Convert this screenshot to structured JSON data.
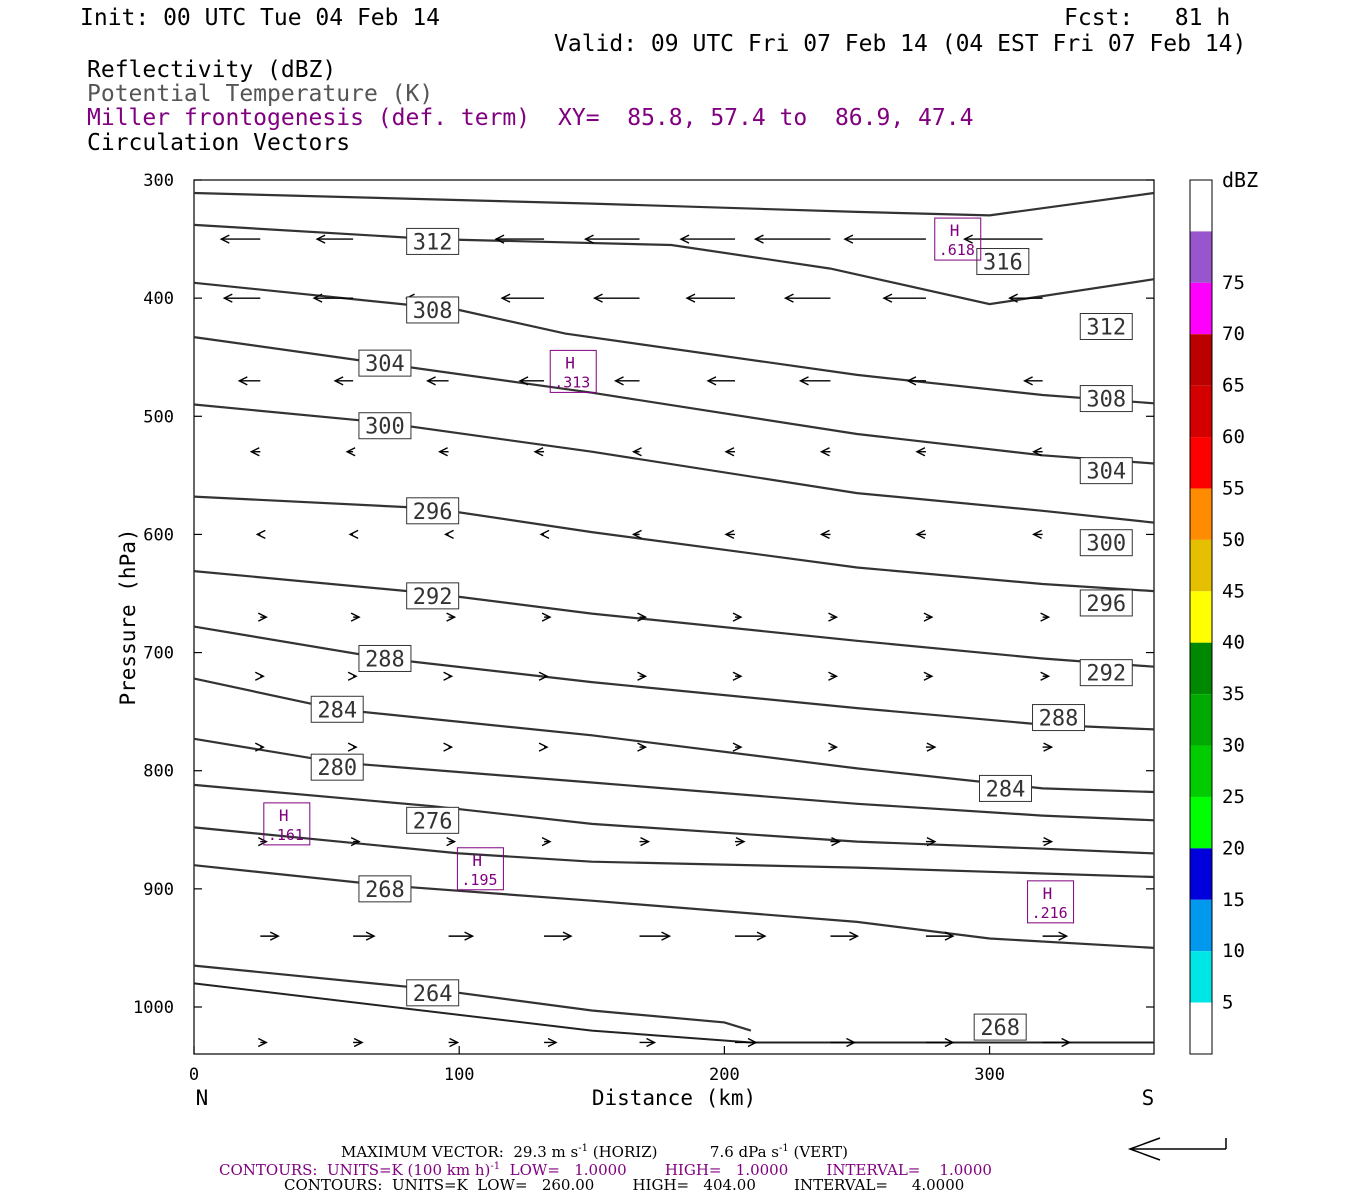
{
  "header": {
    "init": "Init: 00 UTC Tue 04 Feb 14",
    "fcst": "Fcst:   81 h",
    "valid": "Valid: 09 UTC Fri 07 Feb 14 (04 EST Fri 07 Feb 14)",
    "field1": "Reflectivity (dBZ)",
    "field2": "Potential Temperature (K)",
    "field3": "Miller frontogenesis (def. term)",
    "xy": "XY=  85.8, 57.4 to  86.9, 47.4",
    "field4": "Circulation Vectors"
  },
  "colors": {
    "isentrope": "#333333",
    "frontogenesis": "#800080",
    "vector": "#000000"
  },
  "chart_data": {
    "type": "cross-section",
    "xlabel": "Distance (km)",
    "ylabel": "Pressure (hPa)",
    "xlim": [
      0,
      362
    ],
    "ylim": [
      300,
      1040
    ],
    "x_ticks": [
      0,
      100,
      200,
      300
    ],
    "y_ticks": [
      300,
      400,
      500,
      600,
      700,
      800,
      900,
      1000
    ],
    "left_end": "N",
    "right_end": "S",
    "colorbar": {
      "unit": "dBZ",
      "levels": [
        5,
        10,
        15,
        20,
        25,
        30,
        35,
        40,
        45,
        50,
        55,
        60,
        65,
        70,
        75
      ],
      "colors": [
        "#ffffff",
        "#00e5e5",
        "#0099ee",
        "#0000dd",
        "#00ff00",
        "#00cc00",
        "#00aa00",
        "#008800",
        "#ffff00",
        "#e5c000",
        "#ff8c00",
        "#ff0000",
        "#d40000",
        "#bb0000",
        "#ff00ff",
        "#9955cc",
        "#ffffff"
      ]
    },
    "isentropes": [
      {
        "theta": "316",
        "points": [
          [
            0,
            311
          ],
          [
            150,
            320
          ],
          [
            250,
            327
          ],
          [
            300,
            330
          ],
          [
            362,
            311
          ]
        ],
        "labels": [
          [
            305,
            369
          ]
        ]
      },
      {
        "theta": "312",
        "points": [
          [
            0,
            338
          ],
          [
            90,
            350
          ],
          [
            180,
            355
          ],
          [
            240,
            375
          ],
          [
            300,
            405
          ],
          [
            362,
            384
          ]
        ],
        "labels": [
          [
            90,
            352
          ],
          [
            344,
            424
          ]
        ]
      },
      {
        "theta": "308",
        "points": [
          [
            0,
            387
          ],
          [
            100,
            410
          ],
          [
            140,
            430
          ],
          [
            250,
            465
          ],
          [
            320,
            482
          ],
          [
            362,
            489
          ]
        ],
        "labels": [
          [
            90,
            410
          ],
          [
            344,
            485
          ]
        ]
      },
      {
        "theta": "304",
        "points": [
          [
            0,
            433
          ],
          [
            70,
            455
          ],
          [
            150,
            480
          ],
          [
            250,
            515
          ],
          [
            320,
            533
          ],
          [
            362,
            540
          ]
        ],
        "labels": [
          [
            72,
            455
          ],
          [
            344,
            546
          ]
        ]
      },
      {
        "theta": "300",
        "points": [
          [
            0,
            490
          ],
          [
            70,
            505
          ],
          [
            150,
            530
          ],
          [
            250,
            565
          ],
          [
            320,
            580
          ],
          [
            362,
            590
          ]
        ],
        "labels": [
          [
            72,
            508
          ],
          [
            344,
            607
          ]
        ]
      },
      {
        "theta": "296",
        "points": [
          [
            0,
            568
          ],
          [
            90,
            578
          ],
          [
            150,
            598
          ],
          [
            250,
            628
          ],
          [
            320,
            642
          ],
          [
            362,
            648
          ]
        ],
        "labels": [
          [
            90,
            580
          ],
          [
            344,
            658
          ]
        ]
      },
      {
        "theta": "292",
        "points": [
          [
            0,
            631
          ],
          [
            90,
            650
          ],
          [
            150,
            667
          ],
          [
            250,
            690
          ],
          [
            320,
            705
          ],
          [
            362,
            712
          ]
        ],
        "labels": [
          [
            90,
            652
          ],
          [
            344,
            717
          ]
        ]
      },
      {
        "theta": "288",
        "points": [
          [
            0,
            678
          ],
          [
            72,
            705
          ],
          [
            150,
            725
          ],
          [
            250,
            747
          ],
          [
            320,
            761
          ],
          [
            362,
            765
          ]
        ],
        "labels": [
          [
            72,
            705
          ],
          [
            326,
            755
          ]
        ]
      },
      {
        "theta": "284",
        "points": [
          [
            0,
            722
          ],
          [
            54,
            748
          ],
          [
            150,
            770
          ],
          [
            250,
            798
          ],
          [
            320,
            815
          ],
          [
            362,
            818
          ]
        ],
        "labels": [
          [
            54,
            748
          ],
          [
            306,
            815
          ]
        ]
      },
      {
        "theta": "280",
        "points": [
          [
            0,
            773
          ],
          [
            54,
            793
          ],
          [
            150,
            810
          ],
          [
            250,
            828
          ],
          [
            320,
            838
          ],
          [
            362,
            842
          ]
        ],
        "labels": [
          [
            54,
            797
          ]
        ]
      },
      {
        "theta": "276",
        "points": [
          [
            0,
            812
          ],
          [
            90,
            830
          ],
          [
            150,
            845
          ],
          [
            250,
            860
          ],
          [
            320,
            866
          ],
          [
            362,
            870
          ]
        ],
        "labels": [
          [
            90,
            842
          ]
        ]
      },
      {
        "theta": "272",
        "points": [
          [
            0,
            848
          ],
          [
            100,
            870
          ],
          [
            150,
            877
          ],
          [
            250,
            882
          ],
          [
            320,
            887
          ],
          [
            362,
            890
          ]
        ],
        "labels": []
      },
      {
        "theta": "268",
        "points": [
          [
            0,
            880
          ],
          [
            72,
            897
          ],
          [
            150,
            910
          ],
          [
            250,
            928
          ],
          [
            300,
            942
          ],
          [
            362,
            950
          ]
        ],
        "labels": [
          [
            72,
            900
          ],
          [
            304,
            1017
          ]
        ]
      },
      {
        "theta": "264",
        "points": [
          [
            0,
            965
          ],
          [
            90,
            985
          ],
          [
            150,
            1003
          ],
          [
            200,
            1013
          ],
          [
            210,
            1020
          ]
        ],
        "labels": [
          [
            90,
            988
          ]
        ]
      }
    ],
    "frontogenesis_maxima": [
      {
        "label": "H",
        "value": ".618",
        "x": 288,
        "y": 350
      },
      {
        "label": "H",
        "value": ".313",
        "x": 143,
        "y": 462
      },
      {
        "label": "H",
        "value": ".161",
        "x": 35,
        "y": 845
      },
      {
        "label": "H",
        "value": ".195",
        "x": 108,
        "y": 883
      },
      {
        "label": "H",
        "value": ".216",
        "x": 323,
        "y": 911
      }
    ],
    "vectors_per_row": [
      [
        -13,
        -12,
        -13,
        -16,
        -18,
        -18,
        -25,
        -27,
        -26
      ],
      [
        -12,
        -13,
        -14,
        -14,
        -15,
        -16,
        -15,
        -14,
        -11
      ],
      [
        -7,
        -6,
        -7,
        -8,
        -8,
        -9,
        -10,
        -6,
        -6
      ],
      [
        -3,
        -2,
        -3,
        -3,
        -2,
        -3,
        -3,
        -3,
        -3
      ],
      [
        -1,
        -1,
        -1,
        -1,
        -2,
        -3,
        -3,
        -3,
        -3
      ],
      [
        2,
        2,
        2,
        2,
        2,
        2,
        2,
        2,
        2
      ],
      [
        1,
        1,
        1,
        1,
        2,
        2,
        2,
        2,
        2
      ],
      [
        1,
        1,
        1,
        1,
        2,
        2,
        2,
        3,
        3
      ],
      [
        2,
        2,
        2,
        2,
        3,
        3,
        3,
        3,
        3
      ],
      [
        6,
        7,
        8,
        9,
        10,
        10,
        9,
        9,
        8
      ],
      [
        2,
        3,
        3,
        4,
        5,
        7,
        8,
        9,
        9
      ]
    ],
    "vector_rows_hpa": [
      350,
      400,
      470,
      530,
      600,
      670,
      720,
      780,
      860,
      940,
      1030
    ]
  },
  "footer": {
    "max_vector_a": "MAXIMUM VECTOR:  29.3 m s",
    "max_vector_b": " (HORIZ)           7.6 dPa s",
    "max_vector_c": " (VERT)",
    "exp": "-1",
    "contours1_a": "CONTOURS:  UNITS=K (100 km h)",
    "contours1_b": "  LOW=   1.0000        HIGH=   1.0000        INTERVAL=    1.0000",
    "contours2": "CONTOURS:  UNITS=K  LOW=   260.00        HIGH=   404.00        INTERVAL=     4.0000"
  }
}
